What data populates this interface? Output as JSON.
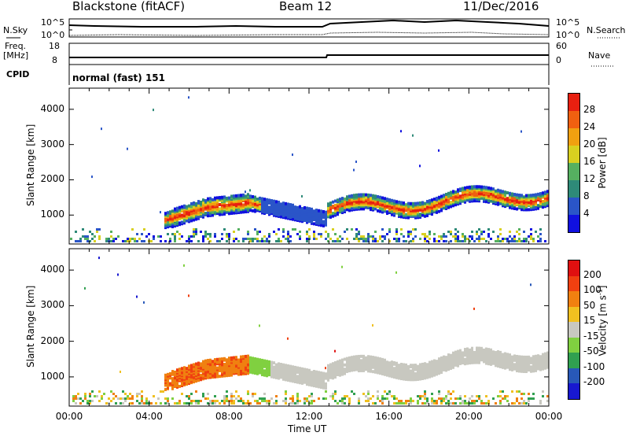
{
  "header": {
    "station": "Blackstone (fitACF)",
    "beam": "Beam 12",
    "date": "11/Dec/2016"
  },
  "aux_panels": {
    "nsky_label": "N.Sky",
    "nsky_ticks": [
      "10^5",
      "10^0"
    ],
    "nsearch_label": "N.Search",
    "nsearch_ticks": [
      "10^5",
      "10^0"
    ],
    "freq_label": "Freq.",
    "freq_unit": "[MHz]",
    "freq_ticks": [
      "18",
      "8"
    ],
    "nave_label": "Nave",
    "nave_ticks": [
      "60",
      "0"
    ],
    "cpid_label": "CPID",
    "cpid_value": "normal (fast) 151"
  },
  "colors": {
    "power_scale": [
      "#1010e0",
      "#2a55c8",
      "#2e8a78",
      "#55b060",
      "#d8d020",
      "#f0a010",
      "#f06010",
      "#e82010"
    ],
    "velocity_scale": [
      "#e01010",
      "#f04010",
      "#f08010",
      "#f0c020",
      "#c8c8c0",
      "#80d040",
      "#30a050",
      "#2858b8",
      "#1818d0"
    ]
  },
  "chart_data": [
    {
      "type": "heatmap",
      "title": "Power",
      "ylabel": "Slant Range [km]",
      "y_ticks": [
        "1000",
        "2000",
        "3000",
        "4000"
      ],
      "ylim": [
        180,
        4600
      ],
      "xlim": [
        "00:00",
        "24:00"
      ],
      "colorbar_label": "Power [dB]",
      "colorbar_ticks": [
        "4",
        "8",
        "12",
        "16",
        "20",
        "24",
        "28"
      ],
      "colorbar_range": [
        0,
        32
      ]
    },
    {
      "type": "heatmap",
      "title": "Velocity",
      "ylabel": "Slant Range [km]",
      "y_ticks": [
        "1000",
        "2000",
        "3000",
        "4000"
      ],
      "ylim": [
        180,
        4600
      ],
      "xlabel": "Time UT",
      "x_ticks": [
        "00:00",
        "04:00",
        "08:00",
        "12:00",
        "16:00",
        "20:00",
        "00:00"
      ],
      "colorbar_label": "Velocity [m s",
      "colorbar_label_sup": "-1",
      "colorbar_label_end": "]",
      "colorbar_ticks": [
        "200",
        "100",
        "50",
        "15",
        "-15",
        "-50",
        "-100",
        "-200"
      ]
    }
  ]
}
